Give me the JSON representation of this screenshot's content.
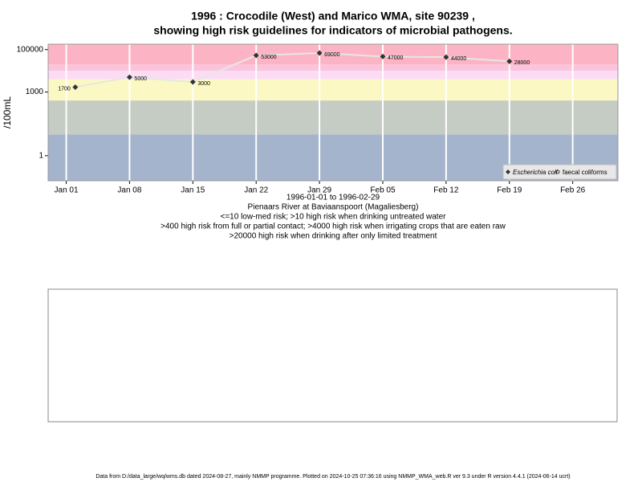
{
  "chart_data": {
    "type": "line",
    "title": "1996 : Crocodile (West) and Marico WMA, site 90239 ,",
    "subtitle": "showing high risk guidelines for indicators of microbial pathogens.",
    "y_label": "/100mL",
    "x_label": "1996-01-01 to 1996-02-29",
    "site": "Pienaars River at Baviaanspoort (Magaliesberg)",
    "notes": [
      "<=10 low-med risk; >10 high risk when drinking untreated water",
      ">400 high risk from full or partial contact; >4000 high risk when irrigating crops that are eaten raw",
      ">20000 high risk when drinking after only limited treatment"
    ],
    "footer": "Data from D:/data_large/wq/wms.db dated 2024-08-27, mainly NMMP programme. Plotted on 2024-10-25 07:36:16 using NMMP_WMA_web.R ver 9.3 under R version 4.4.1 (2024-06-14 ucrt)",
    "x": [
      "1996-01-02",
      "1996-01-08",
      "1996-01-15",
      "1996-01-22",
      "1996-01-29",
      "1996-02-05",
      "1996-02-12",
      "1996-02-19"
    ],
    "series": [
      {
        "name": "Escherichia coli",
        "color": "#333333",
        "line_color": "#e6e6e6",
        "values": [
          1700,
          5000,
          3000,
          53000,
          69000,
          47000,
          44000,
          28000
        ]
      },
      {
        "name": "faecal coliforms",
        "color": "#333333",
        "values": [
          null,
          null,
          null,
          null,
          null,
          null,
          null,
          null
        ]
      }
    ],
    "log_scale": true,
    "ylim": [
      0.066,
      180000
    ],
    "yticks": [
      1,
      1000,
      100000
    ],
    "xlim": [
      "1995-12-30",
      "1996-03-02"
    ],
    "xticks": [
      {
        "value": "1996-01-01",
        "label": "Jan 01"
      },
      {
        "value": "1996-01-08",
        "label": "Jan 08"
      },
      {
        "value": "1996-01-15",
        "label": "Jan 15"
      },
      {
        "value": "1996-01-22",
        "label": "Jan 22"
      },
      {
        "value": "1996-01-29",
        "label": "Jan 29"
      },
      {
        "value": "1996-02-05",
        "label": "Feb 05"
      },
      {
        "value": "1996-02-12",
        "label": "Feb 12"
      },
      {
        "value": "1996-02-19",
        "label": "Feb 19"
      },
      {
        "value": "1996-02-26",
        "label": "Feb 26"
      }
    ],
    "guidelines": [
      10,
      400,
      4000,
      10000,
      20000
    ],
    "band_colors": [
      "#a4b4cc",
      "#c4ccc4",
      "#fcf8c4",
      "#fcdcf4",
      "#fcc4dc",
      "#fcb4c4"
    ],
    "grid": true,
    "legend_position": "bottom-right"
  }
}
